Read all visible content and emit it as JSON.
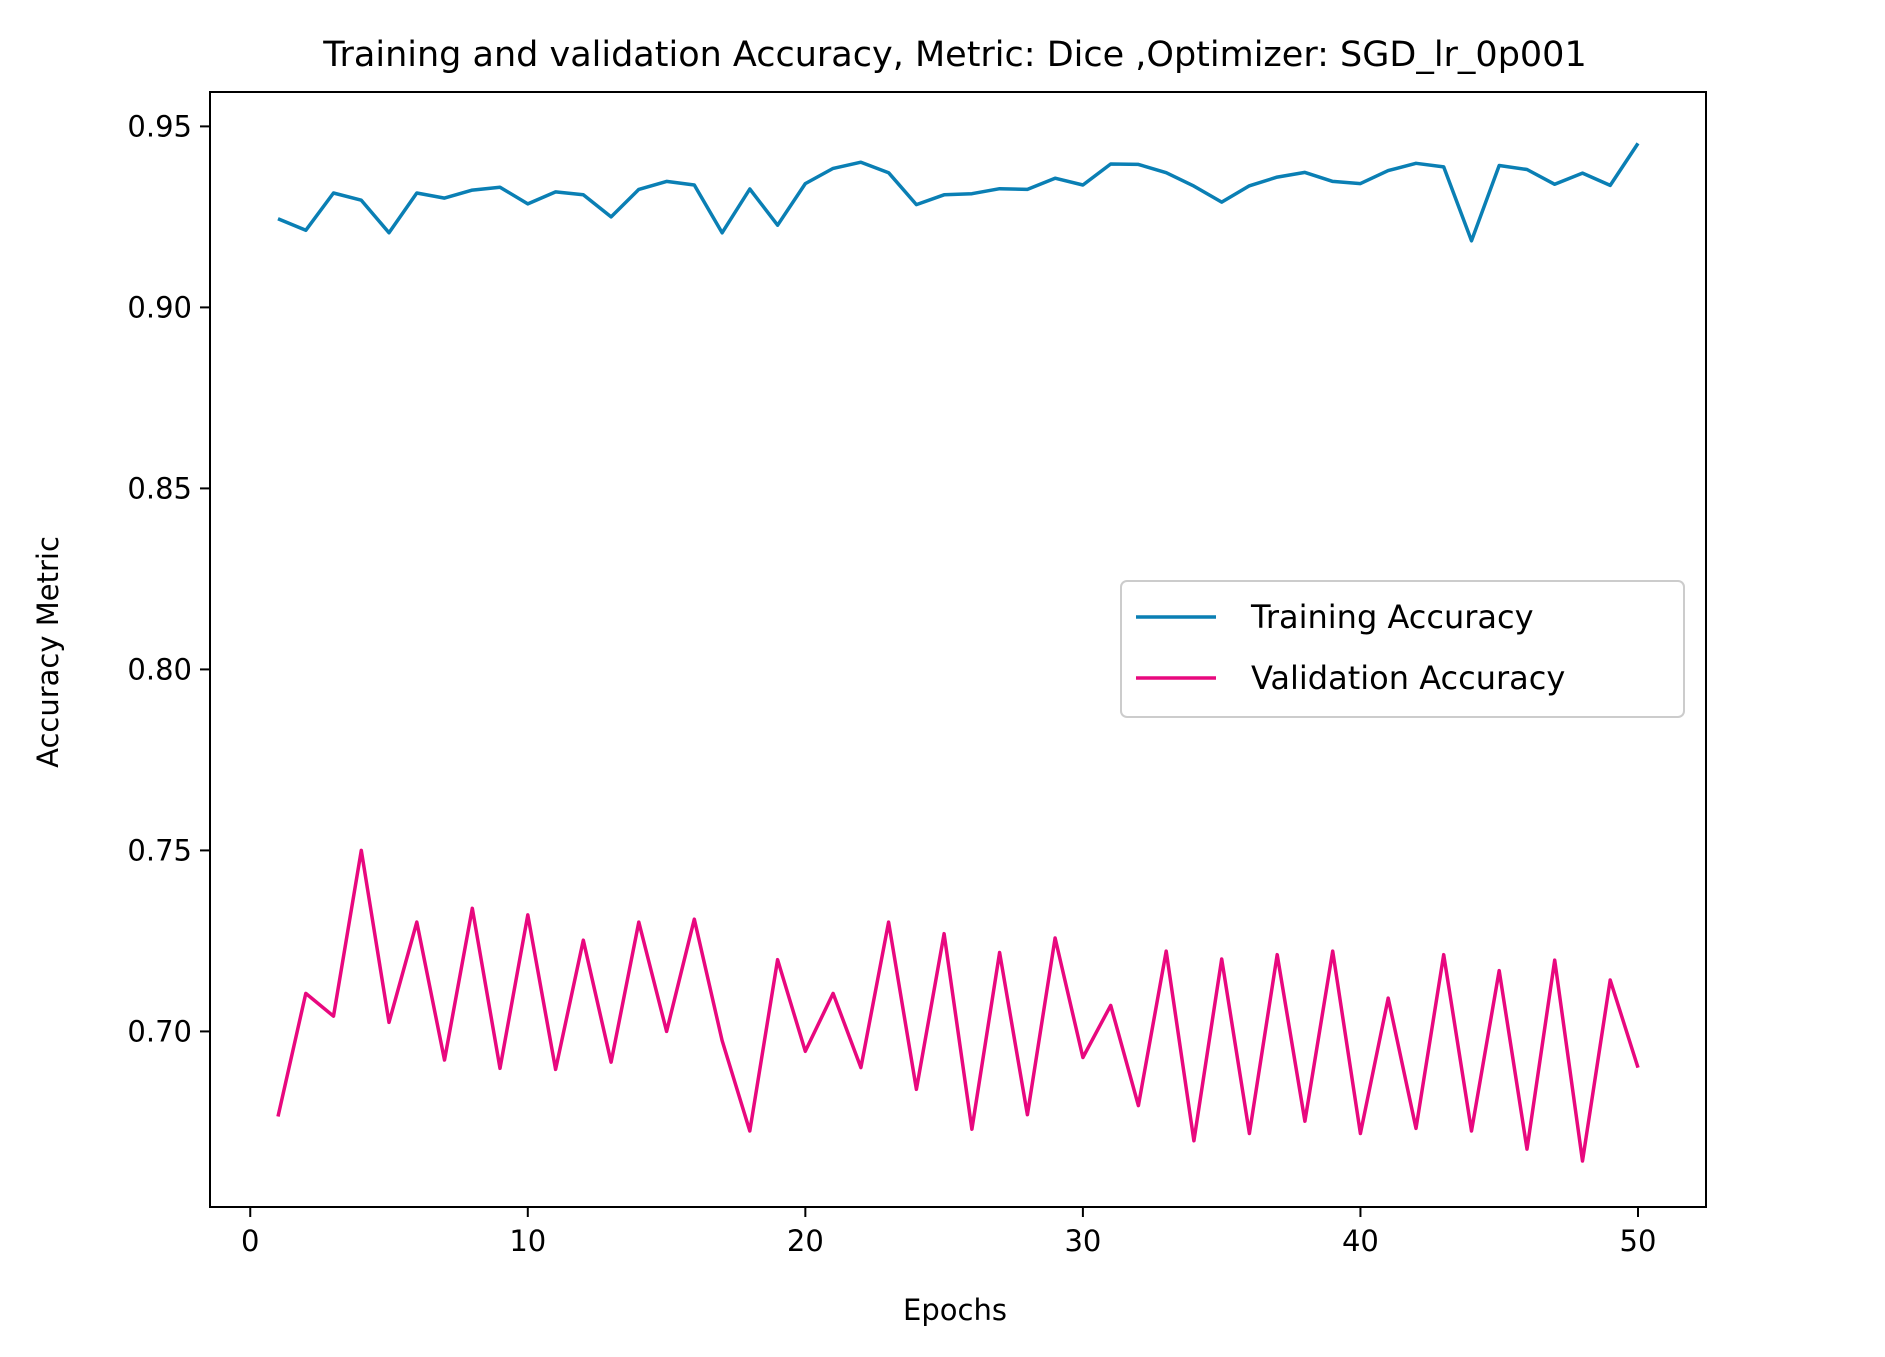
{
  "chart_data": {
    "type": "line",
    "title": "Training and validation Accuracy, Metric: Dice ,Optimizer: SGD_lr_0p001",
    "xlabel": "Epochs",
    "ylabel": "Accuracy Metric",
    "xlim": [
      -1.45,
      52.45
    ],
    "ylim": [
      0.6515,
      0.9595
    ],
    "xticks": [
      0,
      10,
      20,
      30,
      40,
      50
    ],
    "xtick_labels": [
      "0",
      "10",
      "20",
      "30",
      "40",
      "50"
    ],
    "yticks": [
      0.7,
      0.75,
      0.8,
      0.85,
      0.9,
      0.95
    ],
    "ytick_labels": [
      "0.70",
      "0.75",
      "0.80",
      "0.85",
      "0.90",
      "0.95"
    ],
    "grid": false,
    "legend_position": "center-right",
    "x": [
      1,
      2,
      3,
      4,
      5,
      6,
      7,
      8,
      9,
      10,
      11,
      12,
      13,
      14,
      15,
      16,
      17,
      18,
      19,
      20,
      21,
      22,
      23,
      24,
      25,
      26,
      27,
      28,
      29,
      30,
      31,
      32,
      33,
      34,
      35,
      36,
      37,
      38,
      39,
      40,
      41,
      42,
      43,
      44,
      45,
      46,
      47,
      48,
      49,
      50
    ],
    "series": [
      {
        "name": "Training Accuracy",
        "color": "#0a7fb4",
        "values": [
          0.9245,
          0.9213,
          0.9316,
          0.9296,
          0.9206,
          0.9316,
          0.9302,
          0.9324,
          0.9332,
          0.9286,
          0.9319,
          0.9311,
          0.925,
          0.9326,
          0.9348,
          0.9338,
          0.9206,
          0.9327,
          0.9227,
          0.9342,
          0.9384,
          0.9401,
          0.9372,
          0.9284,
          0.9311,
          0.9314,
          0.9328,
          0.9326,
          0.9357,
          0.9338,
          0.9396,
          0.9395,
          0.9372,
          0.9335,
          0.9291,
          0.9336,
          0.936,
          0.9373,
          0.9348,
          0.9342,
          0.9378,
          0.9398,
          0.9388,
          0.9184,
          0.9392,
          0.9381,
          0.934,
          0.9371,
          0.9337,
          0.9453
        ]
      },
      {
        "name": "Validation Accuracy",
        "color": "#e8087e",
        "values": [
          0.6765,
          0.7105,
          0.7042,
          0.75,
          0.7025,
          0.7302,
          0.6921,
          0.734,
          0.6898,
          0.7322,
          0.6895,
          0.7252,
          0.6915,
          0.7302,
          0.7,
          0.731,
          0.6975,
          0.6725,
          0.7198,
          0.6945,
          0.7105,
          0.69,
          0.7302,
          0.684,
          0.727,
          0.673,
          0.7218,
          0.677,
          0.7258,
          0.6928,
          0.7072,
          0.6795,
          0.7222,
          0.6698,
          0.72,
          0.6718,
          0.7212,
          0.6752,
          0.7222,
          0.6718,
          0.7092,
          0.6732,
          0.7212,
          0.6725,
          0.7168,
          0.6675,
          0.7197,
          0.6642,
          0.7142,
          0.69
        ]
      }
    ]
  }
}
